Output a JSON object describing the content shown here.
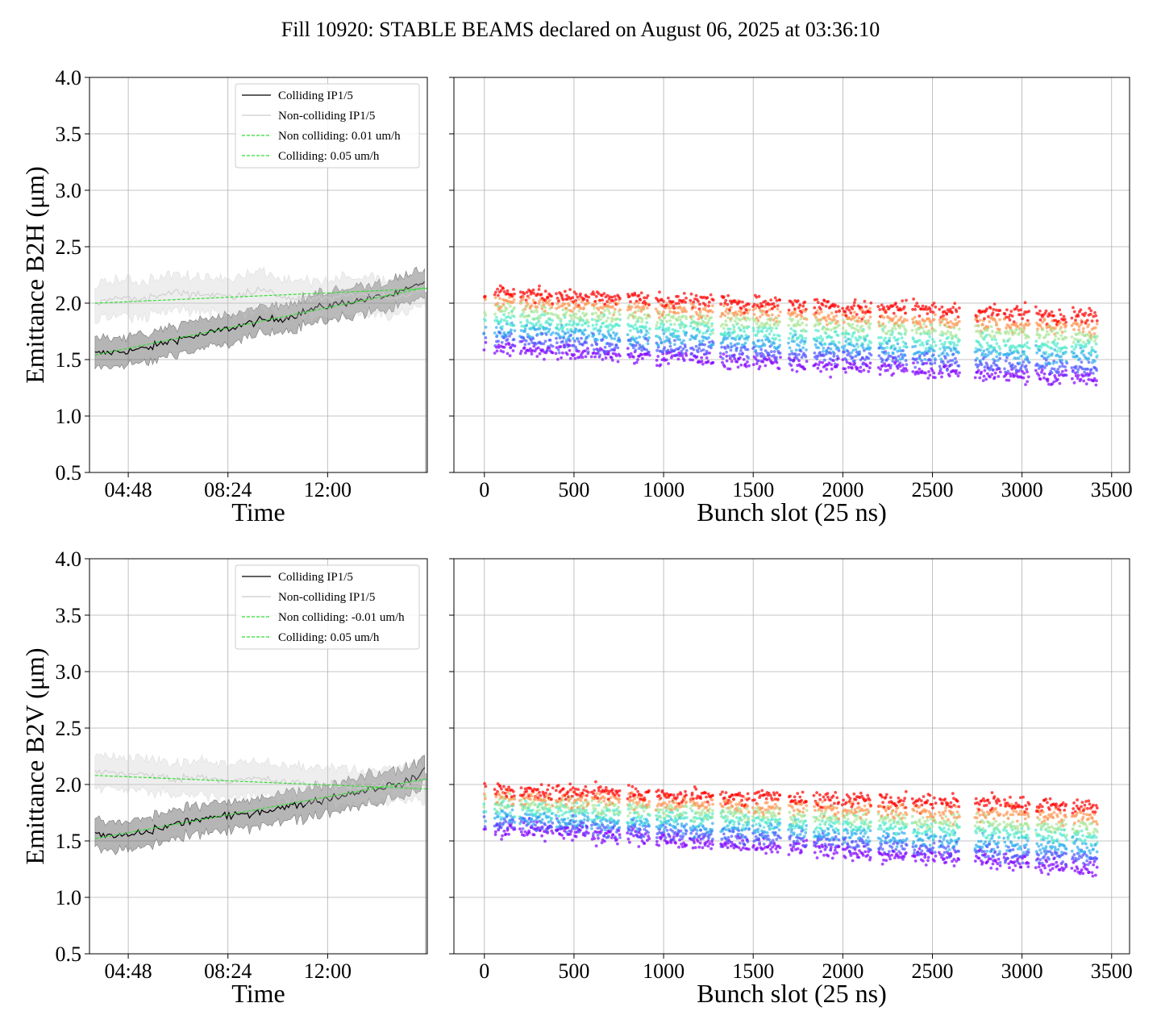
{
  "title": "Fill 10920: STABLE BEAMS declared on August 06, 2025 at 03:36:10",
  "chart_data": [
    {
      "type": "line",
      "panel": "B2H-time",
      "ylabel": "Emittance B2H (μm)",
      "xlabel": "Time",
      "ylim": [
        0.5,
        4.0
      ],
      "yticks": [
        "0.5",
        "1.0",
        "1.5",
        "2.0",
        "2.5",
        "3.0",
        "3.5",
        "4.0"
      ],
      "xlim_hours": [
        3.4,
        15.6
      ],
      "xticks": [
        {
          "h": 4.8,
          "label": "04:48"
        },
        {
          "h": 8.4,
          "label": "08:24"
        },
        {
          "h": 12.0,
          "label": "12:00"
        }
      ],
      "grid": true,
      "legend_position": "top-right",
      "legend": [
        "Colliding IP1/5",
        "Non-colliding IP1/5",
        "Non colliding: 0.01 um/h",
        "Colliding: 0.05 um/h"
      ],
      "series": [
        {
          "name": "Colliding IP1/5",
          "color": "#000000",
          "x_hours": [
            3.6,
            4.5,
            5.5,
            6.5,
            7.5,
            8.5,
            9.5,
            10.5,
            11.5,
            12.5,
            13.5,
            14.5,
            15.2,
            15.5
          ],
          "values": [
            1.55,
            1.57,
            1.6,
            1.68,
            1.72,
            1.78,
            1.84,
            1.87,
            1.95,
            2.0,
            2.04,
            2.08,
            2.15,
            2.2
          ],
          "band": 0.12
        },
        {
          "name": "Non-colliding IP1/5",
          "color": "#cccccc",
          "x_hours": [
            3.6,
            4.5,
            5.5,
            6.5,
            7.5,
            8.5,
            9.5,
            10.5,
            11.5,
            12.5,
            13.5,
            14.5,
            15.2,
            15.5
          ],
          "values": [
            2.0,
            2.05,
            2.04,
            2.1,
            2.08,
            2.06,
            2.12,
            2.05,
            2.03,
            2.06,
            2.08,
            2.05,
            2.1,
            2.12
          ],
          "band": 0.15
        },
        {
          "name": "Non colliding: 0.01 um/h",
          "color": "#33dd33",
          "dashed": true,
          "x_hours": [
            3.6,
            15.6
          ],
          "values": [
            2.0,
            2.13
          ]
        },
        {
          "name": "Colliding: 0.05 um/h",
          "color": "#33dd33",
          "dashed": true,
          "x_hours": [
            3.6,
            15.6
          ],
          "values": [
            1.54,
            2.14
          ]
        }
      ]
    },
    {
      "type": "scatter",
      "panel": "B2H-bunch",
      "xlabel": "Bunch slot (25 ns)",
      "ylim": [
        0.5,
        4.0
      ],
      "xlim": [
        -170,
        3600
      ],
      "xticks": [
        "0",
        "500",
        "1000",
        "1500",
        "2000",
        "2500",
        "3000",
        "3500"
      ],
      "grid": true,
      "trains": [
        [
          0,
          10
        ],
        [
          60,
          170
        ],
        [
          200,
          380
        ],
        [
          400,
          580
        ],
        [
          600,
          760
        ],
        [
          800,
          920
        ],
        [
          960,
          1130
        ],
        [
          1150,
          1280
        ],
        [
          1320,
          1480
        ],
        [
          1500,
          1650
        ],
        [
          1700,
          1800
        ],
        [
          1840,
          1980
        ],
        [
          2000,
          2160
        ],
        [
          2200,
          2360
        ],
        [
          2390,
          2520
        ],
        [
          2540,
          2650
        ],
        [
          2740,
          2880
        ],
        [
          2900,
          3040
        ],
        [
          3080,
          3250
        ],
        [
          3280,
          3420
        ]
      ],
      "bands": {
        "top": [
          2.1,
          1.88
        ],
        "bottom": [
          1.6,
          1.32
        ]
      }
    },
    {
      "type": "line",
      "panel": "B2V-time",
      "ylabel": "Emittance B2V (μm)",
      "xlabel": "Time",
      "ylim": [
        0.5,
        4.0
      ],
      "yticks": [
        "0.5",
        "1.0",
        "1.5",
        "2.0",
        "2.5",
        "3.0",
        "3.5",
        "4.0"
      ],
      "xlim_hours": [
        3.4,
        15.6
      ],
      "xticks": [
        {
          "h": 4.8,
          "label": "04:48"
        },
        {
          "h": 8.4,
          "label": "08:24"
        },
        {
          "h": 12.0,
          "label": "12:00"
        }
      ],
      "grid": true,
      "legend_position": "top-right",
      "legend": [
        "Colliding IP1/5",
        "Non-colliding IP1/5",
        "Non colliding: -0.01 um/h",
        "Colliding: 0.05 um/h"
      ],
      "series": [
        {
          "name": "Colliding IP1/5",
          "color": "#000000",
          "x_hours": [
            3.6,
            4.5,
            5.5,
            6.5,
            7.5,
            8.5,
            9.5,
            10.5,
            11.5,
            12.5,
            13.5,
            14.5,
            15.2,
            15.5
          ],
          "values": [
            1.55,
            1.54,
            1.58,
            1.65,
            1.7,
            1.72,
            1.76,
            1.8,
            1.85,
            1.9,
            1.96,
            2.0,
            2.05,
            2.15
          ],
          "band": 0.12
        },
        {
          "name": "Non-colliding IP1/5",
          "color": "#cccccc",
          "x_hours": [
            3.6,
            4.5,
            5.5,
            6.5,
            7.5,
            8.5,
            9.5,
            10.5,
            11.5,
            12.5,
            13.5,
            14.5,
            15.2,
            15.5
          ],
          "values": [
            2.12,
            2.1,
            2.08,
            2.05,
            2.07,
            2.03,
            2.05,
            2.02,
            2.0,
            2.0,
            1.98,
            2.0,
            2.02,
            2.0
          ],
          "band": 0.14
        },
        {
          "name": "Non colliding: -0.01 um/h",
          "color": "#33dd33",
          "dashed": true,
          "x_hours": [
            3.6,
            15.6
          ],
          "values": [
            2.08,
            1.96
          ]
        },
        {
          "name": "Colliding: 0.05 um/h",
          "color": "#33dd33",
          "dashed": true,
          "x_hours": [
            3.6,
            15.6
          ],
          "values": [
            1.52,
            2.05
          ]
        }
      ]
    },
    {
      "type": "scatter",
      "panel": "B2V-bunch",
      "xlabel": "Bunch slot (25 ns)",
      "ylim": [
        0.5,
        4.0
      ],
      "xlim": [
        -170,
        3600
      ],
      "xticks": [
        "0",
        "500",
        "1000",
        "1500",
        "2000",
        "2500",
        "3000",
        "3500"
      ],
      "grid": true,
      "trains": [
        [
          0,
          10
        ],
        [
          60,
          170
        ],
        [
          200,
          380
        ],
        [
          400,
          580
        ],
        [
          600,
          760
        ],
        [
          800,
          920
        ],
        [
          960,
          1130
        ],
        [
          1150,
          1280
        ],
        [
          1320,
          1480
        ],
        [
          1500,
          1650
        ],
        [
          1700,
          1800
        ],
        [
          1840,
          1980
        ],
        [
          2000,
          2160
        ],
        [
          2200,
          2360
        ],
        [
          2390,
          2520
        ],
        [
          2540,
          2650
        ],
        [
          2740,
          2880
        ],
        [
          2900,
          3040
        ],
        [
          3080,
          3250
        ],
        [
          3280,
          3420
        ]
      ],
      "bands": {
        "top": [
          1.95,
          1.8
        ],
        "bottom": [
          1.62,
          1.25
        ]
      }
    }
  ]
}
